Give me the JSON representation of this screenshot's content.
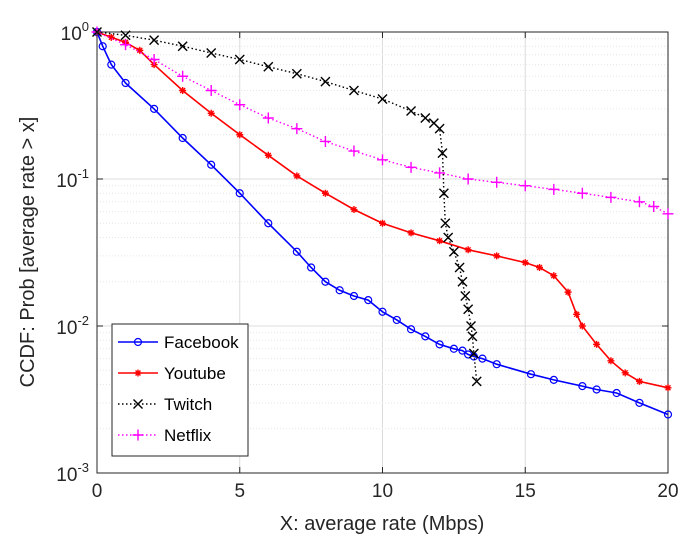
{
  "chart_data": {
    "type": "line",
    "title": "",
    "xlabel": "X: average rate (Mbps)",
    "ylabel": "CCDF: Prob [average rate > x]",
    "xlim": [
      0,
      20
    ],
    "ylim": [
      0.001,
      1
    ],
    "yscale": "log",
    "grid": true,
    "legend_position": "bottom-left",
    "x_ticks": [
      0,
      5,
      10,
      15,
      20
    ],
    "x_tick_labels": [
      "0",
      "5",
      "10",
      "15",
      "20"
    ],
    "y_ticks": [
      0.001,
      0.01,
      0.1,
      1
    ],
    "y_tick_labels": [
      {
        "base": "10",
        "exp": "-3"
      },
      {
        "base": "10",
        "exp": "-2"
      },
      {
        "base": "10",
        "exp": "-1"
      },
      {
        "base": "10",
        "exp": "0"
      }
    ],
    "series": [
      {
        "name": "Facebook",
        "color": "#0000ff",
        "line_style": "solid",
        "marker": "circle",
        "points": [
          [
            0,
            1.0
          ],
          [
            0.2,
            0.8
          ],
          [
            0.5,
            0.6
          ],
          [
            1,
            0.45
          ],
          [
            2,
            0.3
          ],
          [
            3,
            0.19
          ],
          [
            4,
            0.125
          ],
          [
            5,
            0.08
          ],
          [
            6,
            0.05
          ],
          [
            7,
            0.032
          ],
          [
            7.5,
            0.025
          ],
          [
            8,
            0.02
          ],
          [
            8.5,
            0.0175
          ],
          [
            9,
            0.016
          ],
          [
            9.5,
            0.015
          ],
          [
            10,
            0.0125
          ],
          [
            10.5,
            0.011
          ],
          [
            11,
            0.0095
          ],
          [
            11.5,
            0.0085
          ],
          [
            12,
            0.0075
          ],
          [
            12.5,
            0.007
          ],
          [
            12.8,
            0.0068
          ],
          [
            13,
            0.0064
          ],
          [
            13.2,
            0.0062
          ],
          [
            13.5,
            0.006
          ],
          [
            14,
            0.0055
          ],
          [
            15.2,
            0.0047
          ],
          [
            16,
            0.0043
          ],
          [
            17,
            0.0039
          ],
          [
            17.5,
            0.0037
          ],
          [
            18.2,
            0.0035
          ],
          [
            19,
            0.003
          ],
          [
            20,
            0.0025
          ]
        ]
      },
      {
        "name": "Youtube",
        "color": "#ff0000",
        "line_style": "solid",
        "marker": "asterisk",
        "points": [
          [
            0,
            1.0
          ],
          [
            0.5,
            0.92
          ],
          [
            1,
            0.85
          ],
          [
            1.5,
            0.75
          ],
          [
            2,
            0.6
          ],
          [
            3,
            0.4
          ],
          [
            4,
            0.28
          ],
          [
            5,
            0.2
          ],
          [
            6,
            0.145
          ],
          [
            7,
            0.105
          ],
          [
            8,
            0.08
          ],
          [
            9,
            0.062
          ],
          [
            10,
            0.05
          ],
          [
            11,
            0.043
          ],
          [
            12,
            0.038
          ],
          [
            13,
            0.033
          ],
          [
            14,
            0.03
          ],
          [
            15,
            0.027
          ],
          [
            15.5,
            0.025
          ],
          [
            16,
            0.022
          ],
          [
            16.5,
            0.017
          ],
          [
            16.8,
            0.012
          ],
          [
            17,
            0.01
          ],
          [
            17.5,
            0.0075
          ],
          [
            18,
            0.0058
          ],
          [
            18.5,
            0.0048
          ],
          [
            19,
            0.0042
          ],
          [
            20,
            0.0038
          ]
        ]
      },
      {
        "name": "Twitch",
        "color": "#000000",
        "line_style": "dotted",
        "marker": "x",
        "points": [
          [
            0,
            1.0
          ],
          [
            1,
            0.95
          ],
          [
            2,
            0.88
          ],
          [
            3,
            0.8
          ],
          [
            4,
            0.72
          ],
          [
            5,
            0.65
          ],
          [
            6,
            0.58
          ],
          [
            7,
            0.52
          ],
          [
            8,
            0.46
          ],
          [
            9,
            0.4
          ],
          [
            10,
            0.35
          ],
          [
            11,
            0.29
          ],
          [
            11.5,
            0.26
          ],
          [
            11.8,
            0.24
          ],
          [
            12,
            0.22
          ],
          [
            12.1,
            0.15
          ],
          [
            12.15,
            0.08
          ],
          [
            12.2,
            0.05
          ],
          [
            12.3,
            0.04
          ],
          [
            12.5,
            0.032
          ],
          [
            12.7,
            0.025
          ],
          [
            12.8,
            0.02
          ],
          [
            12.9,
            0.016
          ],
          [
            13.0,
            0.013
          ],
          [
            13.1,
            0.01
          ],
          [
            13.15,
            0.0085
          ],
          [
            13.2,
            0.0065
          ],
          [
            13.3,
            0.0042
          ]
        ]
      },
      {
        "name": "Netflix",
        "color": "#ff00ff",
        "line_style": "dotted",
        "marker": "plus",
        "points": [
          [
            0,
            1.0
          ],
          [
            1,
            0.82
          ],
          [
            2,
            0.65
          ],
          [
            3,
            0.5
          ],
          [
            4,
            0.4
          ],
          [
            5,
            0.32
          ],
          [
            6,
            0.26
          ],
          [
            7,
            0.22
          ],
          [
            8,
            0.18
          ],
          [
            9,
            0.155
          ],
          [
            10,
            0.135
          ],
          [
            11,
            0.12
          ],
          [
            12,
            0.11
          ],
          [
            13,
            0.1
          ],
          [
            14,
            0.095
          ],
          [
            15,
            0.09
          ],
          [
            16,
            0.085
          ],
          [
            17,
            0.08
          ],
          [
            18,
            0.075
          ],
          [
            19,
            0.07
          ],
          [
            19.5,
            0.065
          ],
          [
            20,
            0.058
          ]
        ]
      }
    ]
  }
}
